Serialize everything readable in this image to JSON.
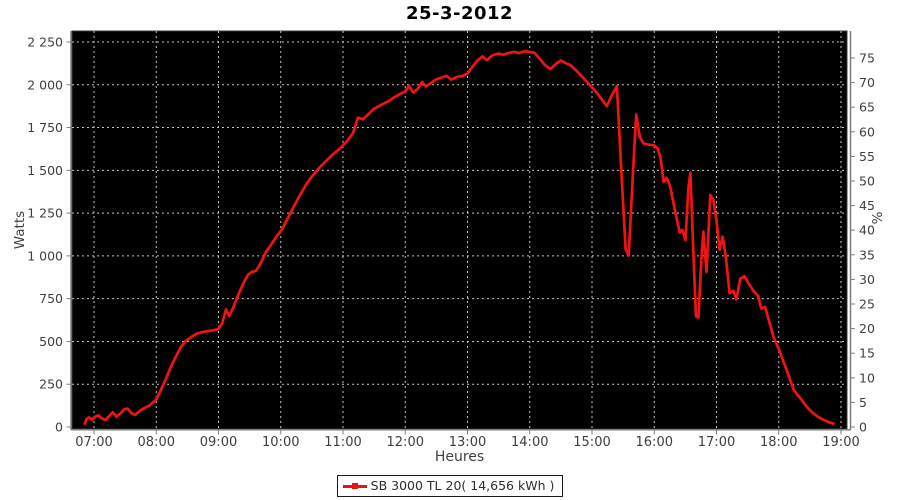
{
  "title": "25-3-2012",
  "axes": {
    "left": {
      "label": "Watts"
    },
    "right": {
      "label": "%"
    },
    "bottom": {
      "label": "Heures"
    }
  },
  "legend": {
    "label": "SB 3000 TL 20( 14,656 kWh )"
  },
  "colors": {
    "series": "#f21212",
    "plot_background": "#000000",
    "gridline": "#c4c4c4",
    "axis_line": "#7d7d7d",
    "tick_label": "#3f3f3f",
    "title_text": "#000000",
    "legend_border": "#1a1a1a",
    "page_background": "#ffffff"
  },
  "chart_data": {
    "type": "line",
    "title": "25-3-2012",
    "xlabel": "Heures",
    "ylabel_left": "Watts",
    "ylabel_right": "%",
    "grid": "dashed gray on black, hourly vertical lines and 250 W horizontal lines",
    "legend_entries": [
      "SB 3000 TL 20( 14,656 kWh )"
    ],
    "legend_position": "bottom",
    "x_range_hours": [
      6.65,
      19.1
    ],
    "watts_range": [
      0,
      2315
    ],
    "x_ticks": [
      {
        "hour": 7,
        "label": "07:00"
      },
      {
        "hour": 8,
        "label": "08:00"
      },
      {
        "hour": 9,
        "label": "09:00"
      },
      {
        "hour": 10,
        "label": "10:00"
      },
      {
        "hour": 11,
        "label": "11:00"
      },
      {
        "hour": 12,
        "label": "12:00"
      },
      {
        "hour": 13,
        "label": "13:00"
      },
      {
        "hour": 14,
        "label": "14:00"
      },
      {
        "hour": 15,
        "label": "15:00"
      },
      {
        "hour": 16,
        "label": "16:00"
      },
      {
        "hour": 17,
        "label": "17:00"
      },
      {
        "hour": 18,
        "label": "18:00"
      },
      {
        "hour": 19,
        "label": "19:00"
      }
    ],
    "watts_ticks": [
      {
        "value": 0,
        "label": "0"
      },
      {
        "value": 250,
        "label": "250"
      },
      {
        "value": 500,
        "label": "500"
      },
      {
        "value": 750,
        "label": "750"
      },
      {
        "value": 1000,
        "label": "1 000"
      },
      {
        "value": 1250,
        "label": "1 250"
      },
      {
        "value": 1500,
        "label": "1 500"
      },
      {
        "value": 1750,
        "label": "1 750"
      },
      {
        "value": 2000,
        "label": "2 000"
      },
      {
        "value": 2250,
        "label": "2 250"
      }
    ],
    "pct_ticks": [
      0,
      5,
      10,
      15,
      20,
      25,
      30,
      35,
      40,
      45,
      50,
      55,
      60,
      65,
      70,
      75
    ],
    "series": [
      {
        "name": "SB 3000 TL 20( 14,656 kWh )",
        "color": "#f21212",
        "points_hour_watts": [
          [
            6.85,
            20
          ],
          [
            6.88,
            46
          ],
          [
            6.92,
            56
          ],
          [
            6.97,
            42
          ],
          [
            7.02,
            60
          ],
          [
            7.07,
            68
          ],
          [
            7.12,
            52
          ],
          [
            7.18,
            40
          ],
          [
            7.24,
            62
          ],
          [
            7.3,
            86
          ],
          [
            7.36,
            60
          ],
          [
            7.42,
            78
          ],
          [
            7.48,
            102
          ],
          [
            7.54,
            108
          ],
          [
            7.6,
            82
          ],
          [
            7.66,
            70
          ],
          [
            7.74,
            96
          ],
          [
            7.82,
            112
          ],
          [
            7.9,
            128
          ],
          [
            8.0,
            162
          ],
          [
            8.07,
            212
          ],
          [
            8.15,
            278
          ],
          [
            8.23,
            348
          ],
          [
            8.32,
            415
          ],
          [
            8.4,
            470
          ],
          [
            8.48,
            505
          ],
          [
            8.57,
            528
          ],
          [
            8.65,
            545
          ],
          [
            8.75,
            555
          ],
          [
            8.85,
            562
          ],
          [
            8.93,
            566
          ],
          [
            9.0,
            574
          ],
          [
            9.06,
            605
          ],
          [
            9.12,
            688
          ],
          [
            9.17,
            648
          ],
          [
            9.24,
            700
          ],
          [
            9.32,
            775
          ],
          [
            9.4,
            840
          ],
          [
            9.47,
            888
          ],
          [
            9.53,
            905
          ],
          [
            9.6,
            912
          ],
          [
            9.68,
            958
          ],
          [
            9.76,
            1022
          ],
          [
            9.85,
            1068
          ],
          [
            9.93,
            1112
          ],
          [
            10.02,
            1155
          ],
          [
            10.12,
            1225
          ],
          [
            10.22,
            1295
          ],
          [
            10.32,
            1362
          ],
          [
            10.42,
            1425
          ],
          [
            10.52,
            1472
          ],
          [
            10.62,
            1515
          ],
          [
            10.72,
            1552
          ],
          [
            10.82,
            1588
          ],
          [
            10.92,
            1618
          ],
          [
            11.0,
            1645
          ],
          [
            11.08,
            1678
          ],
          [
            11.16,
            1718
          ],
          [
            11.24,
            1808
          ],
          [
            11.32,
            1798
          ],
          [
            11.42,
            1832
          ],
          [
            11.5,
            1860
          ],
          [
            11.58,
            1876
          ],
          [
            11.66,
            1892
          ],
          [
            11.74,
            1906
          ],
          [
            11.82,
            1926
          ],
          [
            11.92,
            1946
          ],
          [
            12.0,
            1962
          ],
          [
            12.06,
            1992
          ],
          [
            12.13,
            1954
          ],
          [
            12.2,
            1976
          ],
          [
            12.27,
            2016
          ],
          [
            12.33,
            1990
          ],
          [
            12.42,
            2012
          ],
          [
            12.5,
            2032
          ],
          [
            12.58,
            2042
          ],
          [
            12.66,
            2052
          ],
          [
            12.74,
            2030
          ],
          [
            12.83,
            2046
          ],
          [
            12.92,
            2052
          ],
          [
            13.0,
            2066
          ],
          [
            13.08,
            2106
          ],
          [
            13.16,
            2142
          ],
          [
            13.24,
            2166
          ],
          [
            13.31,
            2144
          ],
          [
            13.4,
            2172
          ],
          [
            13.5,
            2182
          ],
          [
            13.58,
            2176
          ],
          [
            13.66,
            2186
          ],
          [
            13.75,
            2192
          ],
          [
            13.83,
            2186
          ],
          [
            13.92,
            2196
          ],
          [
            14.0,
            2192
          ],
          [
            14.08,
            2186
          ],
          [
            14.16,
            2152
          ],
          [
            14.24,
            2116
          ],
          [
            14.33,
            2092
          ],
          [
            14.42,
            2122
          ],
          [
            14.5,
            2142
          ],
          [
            14.58,
            2126
          ],
          [
            14.66,
            2114
          ],
          [
            14.75,
            2082
          ],
          [
            14.83,
            2052
          ],
          [
            14.92,
            2016
          ],
          [
            15.0,
            1986
          ],
          [
            15.08,
            1952
          ],
          [
            15.16,
            1912
          ],
          [
            15.24,
            1876
          ],
          [
            15.32,
            1940
          ],
          [
            15.4,
            1992
          ],
          [
            15.47,
            1500
          ],
          [
            15.54,
            1040
          ],
          [
            15.59,
            1002
          ],
          [
            15.66,
            1500
          ],
          [
            15.71,
            1826
          ],
          [
            15.77,
            1692
          ],
          [
            15.83,
            1656
          ],
          [
            15.92,
            1650
          ],
          [
            16.0,
            1646
          ],
          [
            16.05,
            1630
          ],
          [
            16.1,
            1576
          ],
          [
            16.15,
            1432
          ],
          [
            16.2,
            1456
          ],
          [
            16.26,
            1402
          ],
          [
            16.34,
            1252
          ],
          [
            16.41,
            1136
          ],
          [
            16.45,
            1152
          ],
          [
            16.5,
            1092
          ],
          [
            16.55,
            1402
          ],
          [
            16.58,
            1486
          ],
          [
            16.63,
            1002
          ],
          [
            16.67,
            646
          ],
          [
            16.71,
            640
          ],
          [
            16.76,
            1002
          ],
          [
            16.79,
            1142
          ],
          [
            16.84,
            906
          ],
          [
            16.9,
            1356
          ],
          [
            16.95,
            1326
          ],
          [
            17.0,
            1206
          ],
          [
            17.05,
            1036
          ],
          [
            17.1,
            1112
          ],
          [
            17.15,
            996
          ],
          [
            17.21,
            782
          ],
          [
            17.27,
            796
          ],
          [
            17.32,
            746
          ],
          [
            17.38,
            866
          ],
          [
            17.45,
            882
          ],
          [
            17.52,
            836
          ],
          [
            17.6,
            792
          ],
          [
            17.67,
            766
          ],
          [
            17.72,
            692
          ],
          [
            17.78,
            702
          ],
          [
            17.85,
            612
          ],
          [
            17.92,
            522
          ],
          [
            18.0,
            456
          ],
          [
            18.08,
            378
          ],
          [
            18.16,
            300
          ],
          [
            18.24,
            218
          ],
          [
            18.3,
            188
          ],
          [
            18.37,
            158
          ],
          [
            18.45,
            118
          ],
          [
            18.53,
            88
          ],
          [
            18.62,
            62
          ],
          [
            18.72,
            42
          ],
          [
            18.82,
            26
          ],
          [
            18.88,
            20
          ]
        ]
      }
    ]
  }
}
